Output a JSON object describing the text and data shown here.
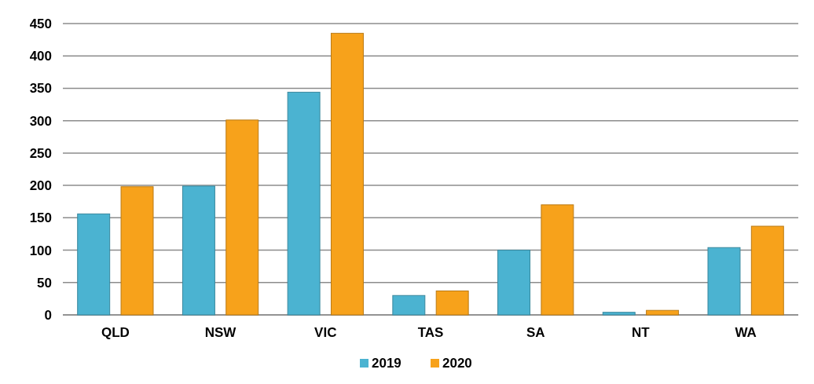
{
  "chart_data": {
    "type": "bar",
    "categories": [
      "QLD",
      "NSW",
      "VIC",
      "TAS",
      "SA",
      "NT",
      "WA"
    ],
    "series": [
      {
        "name": "2019",
        "color": "#4bb3d1",
        "values": [
          156,
          199,
          344,
          30,
          100,
          4,
          104
        ]
      },
      {
        "name": "2020",
        "color": "#f7a21b",
        "values": [
          198,
          301,
          435,
          37,
          170,
          7,
          137
        ]
      }
    ],
    "ylim": [
      0,
      450
    ],
    "yticks": [
      0,
      50,
      100,
      150,
      200,
      250,
      300,
      350,
      400,
      450
    ],
    "grid": "y",
    "legend": "bottom"
  }
}
